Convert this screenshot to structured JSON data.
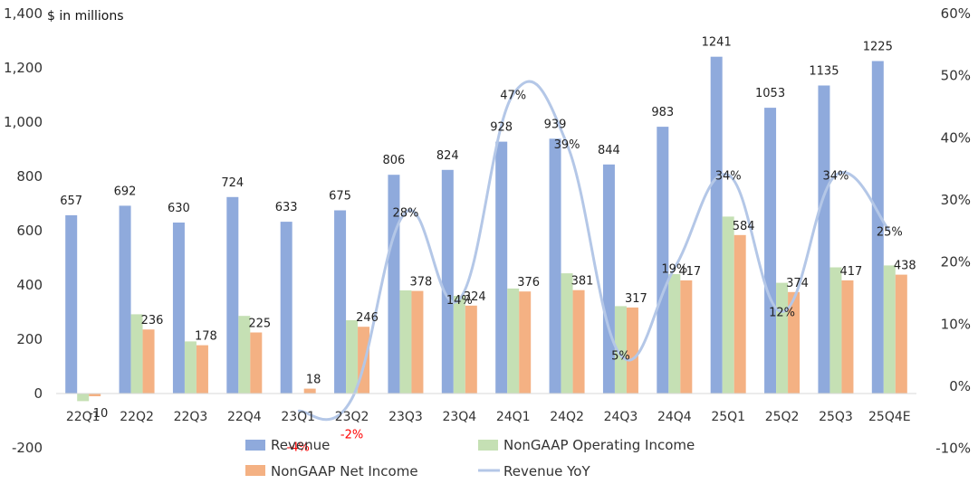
{
  "chart_data": {
    "type": "bar",
    "unit_label": "$ in millions",
    "categories": [
      "22Q1",
      "22Q2",
      "22Q3",
      "22Q4",
      "23Q1",
      "23Q2",
      "23Q3",
      "23Q4",
      "24Q1",
      "24Q2",
      "24Q3",
      "24Q4",
      "25Q1",
      "25Q2",
      "25Q3",
      "25Q4E"
    ],
    "ylim": [
      -200,
      1400
    ],
    "y_ticks": [
      -200,
      0,
      200,
      400,
      600,
      800,
      1000,
      1200,
      1400
    ],
    "y_tick_labels": [
      "-200",
      "0",
      "200",
      "400",
      "600",
      "800",
      "1,000",
      "1,200",
      "1,400"
    ],
    "y2lim": [
      -10,
      60
    ],
    "y2_ticks": [
      -10,
      0,
      10,
      20,
      30,
      40,
      50,
      60
    ],
    "y2_tick_labels": [
      "-10%",
      "0%",
      "10%",
      "20%",
      "30%",
      "40%",
      "50%",
      "60%"
    ],
    "series": [
      {
        "name": "Revenue",
        "type": "bar",
        "axis": "left",
        "color": "#8faadc",
        "values": [
          657,
          692,
          630,
          724,
          633,
          675,
          806,
          824,
          928,
          939,
          844,
          983,
          1241,
          1053,
          1135,
          1225
        ],
        "labels": [
          "657",
          "692",
          "630",
          "724",
          "633",
          "675",
          "806",
          "824",
          "928",
          "939",
          "844",
          "983",
          "1241",
          "1053",
          "1135",
          "1225"
        ]
      },
      {
        "name": "NonGAAP Operating Income",
        "type": "bar",
        "axis": "left",
        "color": "#c5e0b4",
        "values": [
          -28,
          292,
          192,
          286,
          0,
          270,
          380,
          360,
          387,
          443,
          322,
          440,
          652,
          408,
          465,
          472
        ],
        "labels": []
      },
      {
        "name": "NonGAAP Net Income",
        "type": "bar",
        "axis": "left",
        "color": "#f4b183",
        "values": [
          -10,
          236,
          178,
          225,
          18,
          246,
          378,
          324,
          376,
          381,
          317,
          417,
          584,
          374,
          417,
          438
        ],
        "labels": [
          "-10",
          "236",
          "178",
          "225",
          "18",
          "246",
          "378",
          "324",
          "376",
          "381",
          "317",
          "417",
          "584",
          "374",
          "417",
          "438"
        ]
      },
      {
        "name": "Revenue YoY",
        "type": "line",
        "axis": "right",
        "color": "#b4c7e7",
        "x": [
          "23Q1",
          "23Q2",
          "23Q3",
          "23Q4",
          "24Q1",
          "24Q2",
          "24Q3",
          "24Q4",
          "25Q1",
          "25Q2",
          "25Q3",
          "25Q4E"
        ],
        "values": [
          -4,
          -2,
          28,
          14,
          47,
          39,
          5,
          19,
          34,
          12,
          34,
          25
        ],
        "labels": [
          "-4%",
          "-2%",
          "28%",
          "14%",
          "47%",
          "39%",
          "5%",
          "19%",
          "34%",
          "12%",
          "34%",
          "25%"
        ]
      }
    ],
    "colors": {
      "negative_label": "#ff0000",
      "axis_line": "#d9d9d9",
      "text": "#333333"
    },
    "legend": {
      "position": "bottom",
      "items": [
        "Revenue",
        "NonGAAP Operating Income",
        "NonGAAP Net Income",
        "Revenue YoY"
      ]
    }
  }
}
